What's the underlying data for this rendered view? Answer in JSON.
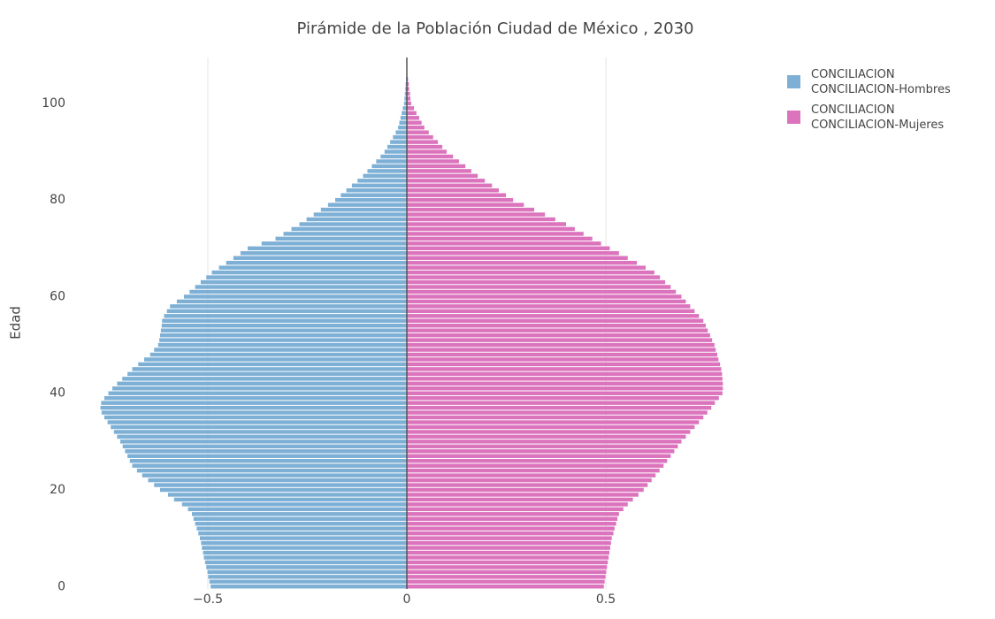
{
  "chart_data": {
    "type": "pyramid",
    "title": "Pirámide de la Población Ciudad de México ,  2030",
    "y_label": "Edad",
    "y": [
      0,
      1,
      2,
      3,
      4,
      5,
      6,
      7,
      8,
      9,
      10,
      11,
      12,
      13,
      14,
      15,
      16,
      17,
      18,
      19,
      20,
      21,
      22,
      23,
      24,
      25,
      26,
      27,
      28,
      29,
      30,
      31,
      32,
      33,
      34,
      35,
      36,
      37,
      38,
      39,
      40,
      41,
      42,
      43,
      44,
      45,
      46,
      47,
      48,
      49,
      50,
      51,
      52,
      53,
      54,
      55,
      56,
      57,
      58,
      59,
      60,
      61,
      62,
      63,
      64,
      65,
      66,
      67,
      68,
      69,
      70,
      71,
      72,
      73,
      74,
      75,
      76,
      77,
      78,
      79,
      80,
      81,
      82,
      83,
      84,
      85,
      86,
      87,
      88,
      89,
      90,
      91,
      92,
      93,
      94,
      95,
      96,
      97,
      98,
      99,
      100,
      101,
      102,
      103,
      104,
      105
    ],
    "series": [
      {
        "name": "CONCILIACION\nCONCILIACION-Hombres",
        "color": "#7eb0d6",
        "values": [
          -0.493,
          -0.496,
          -0.499,
          -0.501,
          -0.504,
          -0.507,
          -0.51,
          -0.512,
          -0.515,
          -0.517,
          -0.52,
          -0.524,
          -0.528,
          -0.532,
          -0.536,
          -0.54,
          -0.55,
          -0.565,
          -0.585,
          -0.6,
          -0.62,
          -0.635,
          -0.65,
          -0.665,
          -0.678,
          -0.69,
          -0.696,
          -0.702,
          -0.708,
          -0.714,
          -0.72,
          -0.728,
          -0.736,
          -0.744,
          -0.752,
          -0.76,
          -0.767,
          -0.77,
          -0.768,
          -0.76,
          -0.75,
          -0.74,
          -0.728,
          -0.715,
          -0.702,
          -0.69,
          -0.675,
          -0.66,
          -0.645,
          -0.635,
          -0.625,
          -0.622,
          -0.62,
          -0.618,
          -0.616,
          -0.615,
          -0.61,
          -0.603,
          -0.595,
          -0.578,
          -0.56,
          -0.546,
          -0.532,
          -0.518,
          -0.504,
          -0.49,
          -0.472,
          -0.454,
          -0.436,
          -0.418,
          -0.4,
          -0.365,
          -0.33,
          -0.31,
          -0.29,
          -0.27,
          -0.252,
          -0.234,
          -0.216,
          -0.198,
          -0.18,
          -0.166,
          -0.152,
          -0.138,
          -0.124,
          -0.11,
          -0.099,
          -0.088,
          -0.077,
          -0.066,
          -0.056,
          -0.049,
          -0.042,
          -0.035,
          -0.028,
          -0.022,
          -0.019,
          -0.016,
          -0.013,
          -0.01,
          -0.007,
          -0.006,
          -0.005,
          -0.004,
          -0.003,
          -0.002
        ]
      },
      {
        "name": "CONCILIACION\nCONCILIACION-Mujeres",
        "color": "#dc74bd",
        "values": [
          0.495,
          0.497,
          0.499,
          0.501,
          0.503,
          0.505,
          0.507,
          0.509,
          0.511,
          0.513,
          0.515,
          0.519,
          0.522,
          0.526,
          0.529,
          0.533,
          0.544,
          0.555,
          0.568,
          0.582,
          0.595,
          0.605,
          0.615,
          0.625,
          0.635,
          0.645,
          0.654,
          0.663,
          0.672,
          0.681,
          0.69,
          0.701,
          0.712,
          0.723,
          0.734,
          0.745,
          0.755,
          0.765,
          0.774,
          0.784,
          0.793,
          0.794,
          0.794,
          0.793,
          0.792,
          0.79,
          0.787,
          0.783,
          0.78,
          0.776,
          0.773,
          0.767,
          0.762,
          0.756,
          0.751,
          0.745,
          0.734,
          0.723,
          0.712,
          0.701,
          0.69,
          0.676,
          0.663,
          0.649,
          0.636,
          0.622,
          0.6,
          0.578,
          0.555,
          0.533,
          0.51,
          0.488,
          0.466,
          0.444,
          0.422,
          0.4,
          0.373,
          0.347,
          0.32,
          0.294,
          0.267,
          0.249,
          0.231,
          0.214,
          0.196,
          0.178,
          0.162,
          0.147,
          0.131,
          0.116,
          0.1,
          0.089,
          0.078,
          0.066,
          0.055,
          0.044,
          0.037,
          0.031,
          0.024,
          0.018,
          0.011,
          0.009,
          0.008,
          0.006,
          0.005,
          0.003
        ]
      }
    ],
    "xlim": [
      -0.8,
      0.8
    ],
    "xticks": [
      {
        "value": -0.5,
        "label": "−0.5"
      },
      0,
      0.5
    ],
    "ylim": [
      -0.5,
      109.5
    ],
    "yticks": [
      0,
      20,
      40,
      60,
      80,
      100
    ],
    "grid": true,
    "legend": "top-right"
  }
}
